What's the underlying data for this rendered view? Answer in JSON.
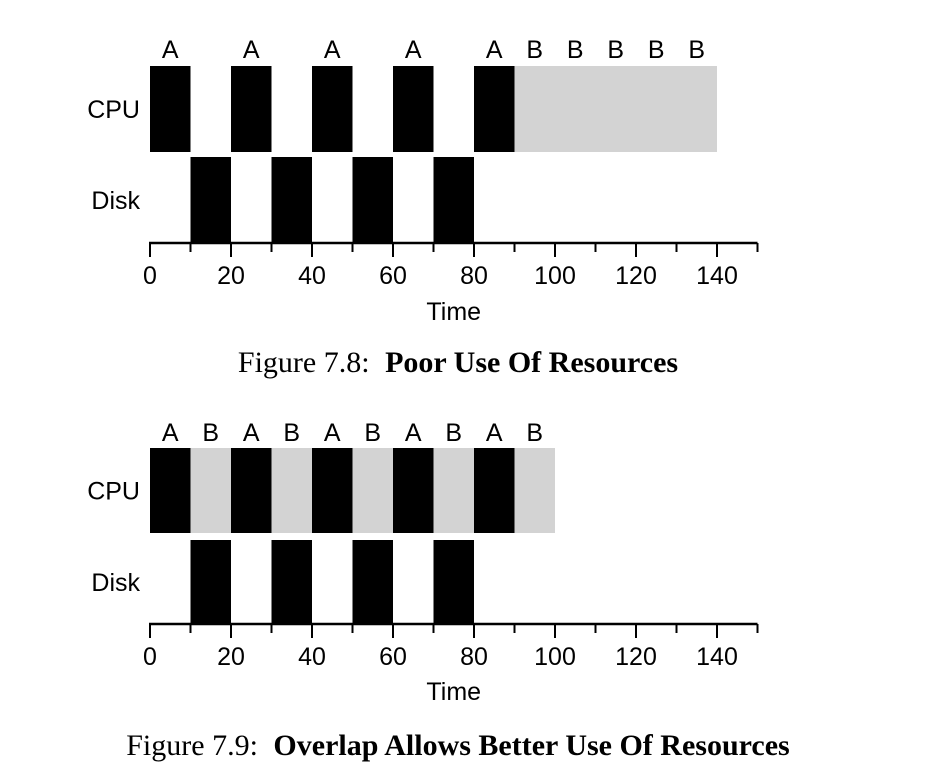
{
  "chart_data": [
    {
      "type": "timeline",
      "rows": [
        "CPU",
        "Disk"
      ],
      "xlabel": "Time",
      "xlim": [
        0,
        150
      ],
      "xticks": [
        0,
        20,
        40,
        60,
        80,
        100,
        120,
        140
      ],
      "colors": {
        "A": "#000000",
        "B": "#d3d3d3"
      },
      "segments": [
        {
          "row": "CPU",
          "job": "A",
          "start": 0,
          "end": 10,
          "label": "A"
        },
        {
          "row": "CPU",
          "job": "A",
          "start": 20,
          "end": 30,
          "label": "A"
        },
        {
          "row": "CPU",
          "job": "A",
          "start": 40,
          "end": 50,
          "label": "A"
        },
        {
          "row": "CPU",
          "job": "A",
          "start": 60,
          "end": 70,
          "label": "A"
        },
        {
          "row": "CPU",
          "job": "A",
          "start": 80,
          "end": 90,
          "label": "A"
        },
        {
          "row": "CPU",
          "job": "B",
          "start": 90,
          "end": 140,
          "label": ""
        },
        {
          "row": "Disk",
          "job": "A",
          "start": 10,
          "end": 20,
          "label": ""
        },
        {
          "row": "Disk",
          "job": "A",
          "start": 30,
          "end": 40,
          "label": ""
        },
        {
          "row": "Disk",
          "job": "A",
          "start": 50,
          "end": 60,
          "label": ""
        },
        {
          "row": "Disk",
          "job": "A",
          "start": 70,
          "end": 80,
          "label": ""
        }
      ],
      "top_labels": [
        {
          "x": 5,
          "text": "A"
        },
        {
          "x": 25,
          "text": "A"
        },
        {
          "x": 45,
          "text": "A"
        },
        {
          "x": 65,
          "text": "A"
        },
        {
          "x": 85,
          "text": "A"
        },
        {
          "x": 95,
          "text": "B"
        },
        {
          "x": 105,
          "text": "B"
        },
        {
          "x": 115,
          "text": "B"
        },
        {
          "x": 125,
          "text": "B"
        },
        {
          "x": 135,
          "text": "B"
        }
      ],
      "caption_prefix": "Figure 7.8:",
      "caption_title": "Poor Use Of Resources"
    },
    {
      "type": "timeline",
      "rows": [
        "CPU",
        "Disk"
      ],
      "xlabel": "Time",
      "xlim": [
        0,
        150
      ],
      "xticks": [
        0,
        20,
        40,
        60,
        80,
        100,
        120,
        140
      ],
      "colors": {
        "A": "#000000",
        "B": "#d3d3d3"
      },
      "segments": [
        {
          "row": "CPU",
          "job": "A",
          "start": 0,
          "end": 10
        },
        {
          "row": "CPU",
          "job": "B",
          "start": 10,
          "end": 20
        },
        {
          "row": "CPU",
          "job": "A",
          "start": 20,
          "end": 30
        },
        {
          "row": "CPU",
          "job": "B",
          "start": 30,
          "end": 40
        },
        {
          "row": "CPU",
          "job": "A",
          "start": 40,
          "end": 50
        },
        {
          "row": "CPU",
          "job": "B",
          "start": 50,
          "end": 60
        },
        {
          "row": "CPU",
          "job": "A",
          "start": 60,
          "end": 70
        },
        {
          "row": "CPU",
          "job": "B",
          "start": 70,
          "end": 80
        },
        {
          "row": "CPU",
          "job": "A",
          "start": 80,
          "end": 90
        },
        {
          "row": "CPU",
          "job": "B",
          "start": 90,
          "end": 100
        },
        {
          "row": "Disk",
          "job": "A",
          "start": 10,
          "end": 20
        },
        {
          "row": "Disk",
          "job": "A",
          "start": 30,
          "end": 40
        },
        {
          "row": "Disk",
          "job": "A",
          "start": 50,
          "end": 60
        },
        {
          "row": "Disk",
          "job": "A",
          "start": 70,
          "end": 80
        }
      ],
      "top_labels": [
        {
          "x": 5,
          "text": "A"
        },
        {
          "x": 15,
          "text": "B"
        },
        {
          "x": 25,
          "text": "A"
        },
        {
          "x": 35,
          "text": "B"
        },
        {
          "x": 45,
          "text": "A"
        },
        {
          "x": 55,
          "text": "B"
        },
        {
          "x": 65,
          "text": "A"
        },
        {
          "x": 75,
          "text": "B"
        },
        {
          "x": 85,
          "text": "A"
        },
        {
          "x": 95,
          "text": "B"
        }
      ],
      "caption_prefix": "Figure 7.9:",
      "caption_title": "Overlap Allows Better Use Of Resources"
    }
  ]
}
